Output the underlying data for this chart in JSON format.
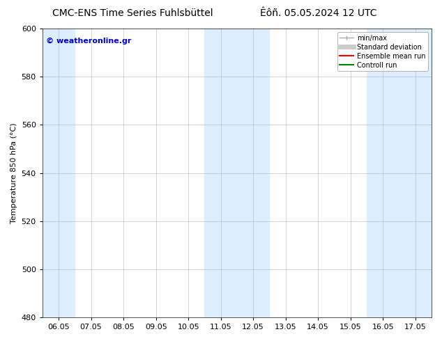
{
  "title_left": "CMC-ENS Time Series Fuhlsbüttel",
  "title_right": "Êôñ. 05.05.2024 12 UTC",
  "ylabel": "Temperature 850 hPa (°C)",
  "ylim": [
    480,
    600
  ],
  "yticks": [
    480,
    500,
    520,
    540,
    560,
    580,
    600
  ],
  "xtick_labels": [
    "06.05",
    "07.05",
    "08.05",
    "09.05",
    "10.05",
    "11.05",
    "12.05",
    "13.05",
    "14.05",
    "15.05",
    "16.05",
    "17.05"
  ],
  "shaded_bands": [
    {
      "xmin": 0,
      "xmax": 1
    },
    {
      "xmin": 5,
      "xmax": 7
    },
    {
      "xmin": 10,
      "xmax": 12
    }
  ],
  "shaded_color": "#ddeeff",
  "watermark_text": "© weatheronline.gr",
  "watermark_color": "#0000cc",
  "bg_color": "#ffffff",
  "grid_color": "#aaaaaa",
  "title_fontsize": 10,
  "axis_fontsize": 8,
  "tick_fontsize": 8,
  "legend_fontsize": 7,
  "minmax_color": "#aaaaaa",
  "std_color": "#cccccc",
  "ens_color": "#ff0000",
  "ctrl_color": "#008000"
}
